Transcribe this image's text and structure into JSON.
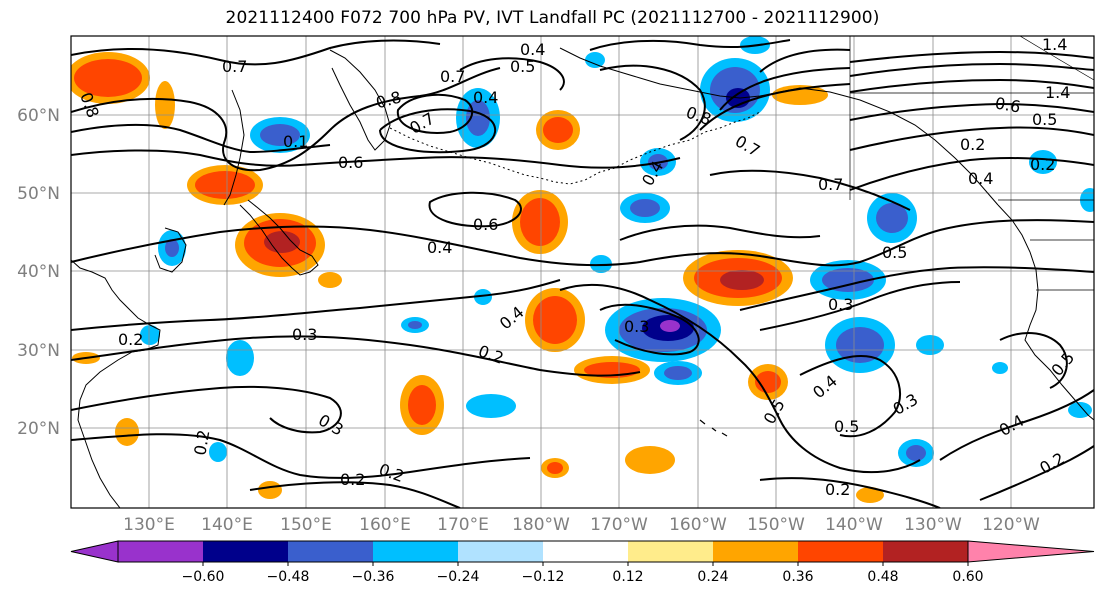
{
  "title": "2021112400 F072 700 hPa PV, IVT Landfall PC (2021112700 - 2021112900)",
  "lat_labels": [
    "60°N",
    "50°N",
    "40°N",
    "30°N",
    "20°N"
  ],
  "lon_labels": [
    "130°E",
    "140°E",
    "150°E",
    "160°E",
    "170°E",
    "180°W",
    "170°W",
    "160°W",
    "150°W",
    "140°W",
    "130°W",
    "120°W"
  ],
  "contour_labels": [
    "0.7",
    "0.8",
    "0.4",
    "0.5",
    "0.7",
    "1.4",
    "0.6",
    "0.5",
    "0.2",
    "0.4",
    "0.7",
    "0.6",
    "0.4",
    "0.5",
    "0.3",
    "0.4",
    "0.3",
    "0.2",
    "0.3",
    "0.2",
    "0.2",
    "0.3",
    "0.2",
    "0.5",
    "0.4",
    "0.5",
    "0.3",
    "0.5",
    "0.4",
    "0.2",
    "0.2",
    "0.2",
    "0.8",
    "0.7",
    "0.4",
    "0.8",
    "0.7",
    "0.1",
    "0.2",
    "0.4",
    "0.6",
    "1.4"
  ],
  "colorbar": {
    "ticks": [
      "−0.60",
      "−0.48",
      "−0.36",
      "−0.24",
      "−0.12",
      "0.12",
      "0.24",
      "0.36",
      "0.48",
      "0.60"
    ],
    "colors": [
      "#9932CC",
      "#00008B",
      "#3A5FCD",
      "#00BFFF",
      "#B0E2FF",
      "#FFFFFF",
      "#FFEC8B",
      "#FFA500",
      "#FF4500",
      "#B22222",
      "#FF82AB"
    ]
  }
}
